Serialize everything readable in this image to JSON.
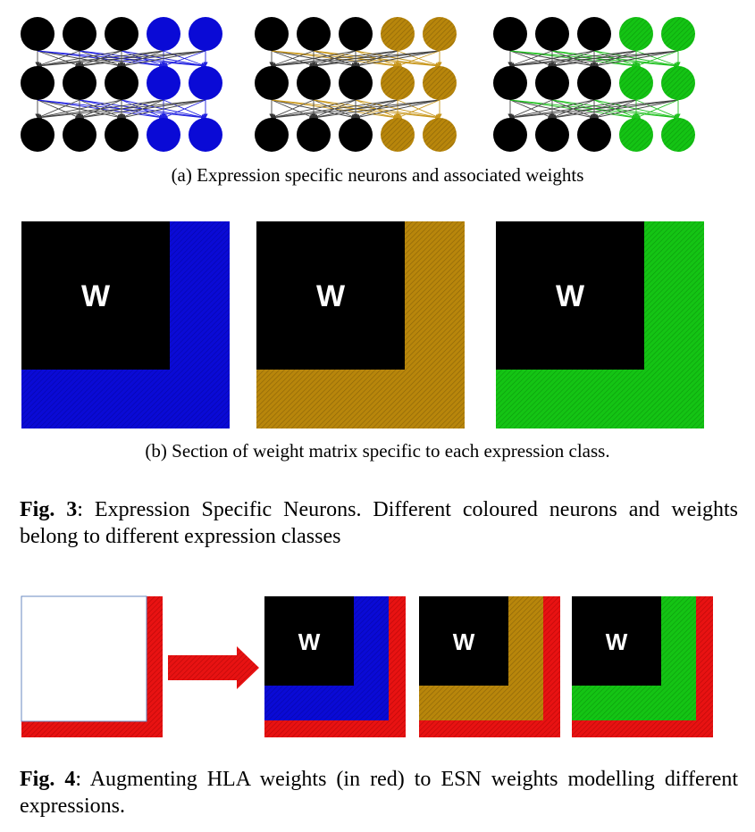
{
  "fig3": {
    "panel_a": {
      "label": "(a)",
      "caption": "Expression specific neurons and associated weights",
      "networks": [
        {
          "class_color": "#0a0ad6",
          "hatched": false
        },
        {
          "class_color": "#b8860b",
          "hatched": true
        },
        {
          "class_color": "#10c010",
          "hatched": true
        }
      ]
    },
    "panel_b": {
      "label": "(b)",
      "caption": "Section of weight matrix specific to each expression class.",
      "matrices": [
        {
          "letter": "W",
          "class_color": "#0a0ad6"
        },
        {
          "letter": "W",
          "class_color": "#b8860b"
        },
        {
          "letter": "W",
          "class_color": "#10c010"
        }
      ]
    },
    "caption": {
      "label": "Fig. 3",
      "text": ": Expression Specific Neurons.  Different coloured neurons and weights belong to different expression classes"
    }
  },
  "fig4": {
    "hla_color": "#e01010",
    "matrices": [
      {
        "letter": "W",
        "class_color": "#0a0ad6"
      },
      {
        "letter": "W",
        "class_color": "#b8860b"
      },
      {
        "letter": "W",
        "class_color": "#10c010"
      }
    ],
    "caption": {
      "label": "Fig. 4",
      "text": ": Augmenting HLA weights (in red) to ESN weights modelling different expressions."
    }
  }
}
